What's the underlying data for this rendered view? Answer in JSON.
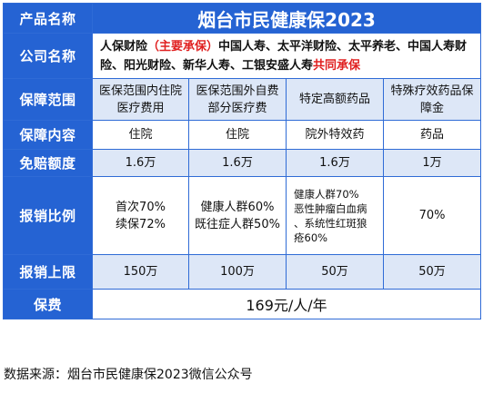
{
  "header": {
    "label": "产品名称",
    "title": "烟台市民健康保2023"
  },
  "company": {
    "label": "公司名称",
    "main": "人保财险",
    "main_note": "（主要承保）",
    "others": "中国人寿、太平洋财险、太平养老、中国人寿财险、阳光财险、新华人寿、工银安盛人寿",
    "suffix": "共同承保"
  },
  "rows": [
    {
      "label": "保障范围",
      "cells": [
        "医保范围内住院医疗费用",
        "医保范围外自费部分医疗费",
        "特定高额药品",
        "特殊疗效药品保障金"
      ]
    },
    {
      "label": "保障内容",
      "cells": [
        "住院",
        "住院",
        "院外特效药",
        "药品"
      ]
    },
    {
      "label": "免赔额度",
      "cells": [
        "1.6万",
        "1.6万",
        "1.6万",
        "1万"
      ]
    },
    {
      "label": "报销比例",
      "cells": [
        [
          "首次70%",
          "续保72%"
        ],
        [
          "健康人群60%",
          "既往症人群50%"
        ],
        [
          "健康人群70%",
          "恶性肿瘤白血病",
          "、系统性红斑狼",
          "疮60%"
        ],
        [
          "70%"
        ]
      ]
    },
    {
      "label": "报销上限",
      "cells": [
        "150万",
        "100万",
        "50万",
        "50万"
      ]
    }
  ],
  "premium": {
    "label": "保费",
    "value": "169元/人/年"
  },
  "source": "数据来源：烟台市民健康保2023微信公众号"
}
